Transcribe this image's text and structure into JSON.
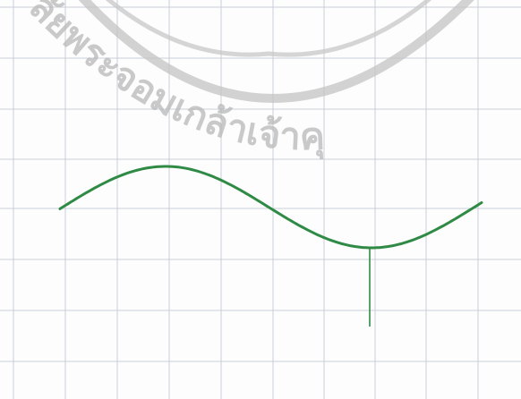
{
  "watermark": {
    "text": "ลัยพระจอมเกล้าเจ้าคุ"
  }
}
